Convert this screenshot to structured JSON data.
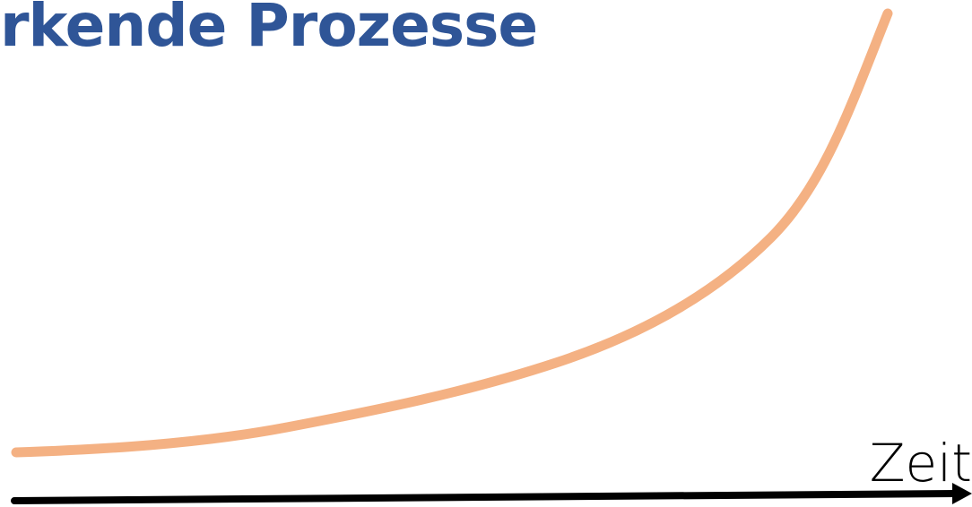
{
  "title": "rkende Prozesse",
  "axis": {
    "x_label": "Zeit"
  },
  "colors": {
    "title": "#2f5597",
    "curve": "#f4b183",
    "axis": "#000000"
  },
  "curve_shape": "exponential-growth"
}
